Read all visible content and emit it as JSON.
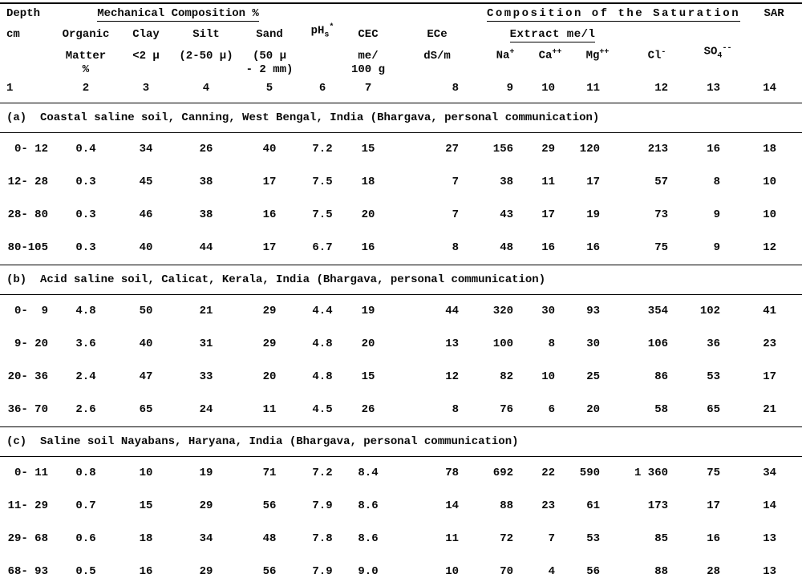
{
  "table": {
    "group_headers": {
      "mechanical": "Mechanical Composition %",
      "saturation_line1": "Composition of the Saturation",
      "saturation_line2": "Extract me/l"
    },
    "columns": [
      {
        "num": "1",
        "lines": [
          "Depth",
          "cm"
        ]
      },
      {
        "num": "2",
        "lines": [
          "Organic",
          "Matter",
          "%"
        ]
      },
      {
        "num": "3",
        "lines": [
          "Clay",
          "<2 μ"
        ]
      },
      {
        "num": "4",
        "lines": [
          "Silt",
          "(2-50 μ)"
        ]
      },
      {
        "num": "5",
        "lines": [
          "Sand",
          "(50 μ",
          "- 2 mm)"
        ]
      },
      {
        "num": "6",
        "lines": [
          "pH~s~^*^"
        ]
      },
      {
        "num": "7",
        "lines": [
          "CEC",
          "me/",
          "100 g"
        ]
      },
      {
        "num": "8",
        "lines": [
          "ECe",
          "dS/m"
        ]
      },
      {
        "num": "9",
        "lines": [
          "Na^+^"
        ]
      },
      {
        "num": "10",
        "lines": [
          "Ca^++^"
        ]
      },
      {
        "num": "11",
        "lines": [
          "Mg^++^"
        ]
      },
      {
        "num": "12",
        "lines": [
          "Cl^-^"
        ]
      },
      {
        "num": "13",
        "lines": [
          "SO~4~^--^"
        ]
      },
      {
        "num": "14",
        "lines": [
          "SAR"
        ]
      }
    ],
    "sections": [
      {
        "label": "(a)",
        "title": "Coastal saline soil, Canning, West Bengal, India (Bhargava, personal communication)",
        "rows": [
          [
            "0- 12",
            "0.4",
            "34",
            "26",
            "40",
            "7.2",
            "15",
            "27",
            "156",
            "29",
            "120",
            "213",
            "16",
            "18"
          ],
          [
            "12- 28",
            "0.3",
            "45",
            "38",
            "17",
            "7.5",
            "18",
            "7",
            "38",
            "11",
            "17",
            "57",
            "8",
            "10"
          ],
          [
            "28- 80",
            "0.3",
            "46",
            "38",
            "16",
            "7.5",
            "20",
            "7",
            "43",
            "17",
            "19",
            "73",
            "9",
            "10"
          ],
          [
            "80-105",
            "0.3",
            "40",
            "44",
            "17",
            "6.7",
            "16",
            "8",
            "48",
            "16",
            "16",
            "75",
            "9",
            "12"
          ]
        ]
      },
      {
        "label": "(b)",
        "title": "Acid saline soil, Calicat, Kerala, India (Bhargava, personal communication)",
        "rows": [
          [
            "0-  9",
            "4.8",
            "50",
            "21",
            "29",
            "4.4",
            "19",
            "44",
            "320",
            "30",
            "93",
            "354",
            "102",
            "41"
          ],
          [
            "9- 20",
            "3.6",
            "40",
            "31",
            "29",
            "4.8",
            "20",
            "13",
            "100",
            "8",
            "30",
            "106",
            "36",
            "23"
          ],
          [
            "20- 36",
            "2.4",
            "47",
            "33",
            "20",
            "4.8",
            "15",
            "12",
            "82",
            "10",
            "25",
            "86",
            "53",
            "17"
          ],
          [
            "36- 70",
            "2.6",
            "65",
            "24",
            "11",
            "4.5",
            "26",
            "8",
            "76",
            "6",
            "20",
            "58",
            "65",
            "21"
          ]
        ]
      },
      {
        "label": "(c)",
        "title": "Saline soil Nayabans, Haryana, India (Bhargava, personal communication)",
        "rows": [
          [
            "0- 11",
            "0.8",
            "10",
            "19",
            "71",
            "7.2",
            "8.4",
            "78",
            "692",
            "22",
            "590",
            "1 360",
            "75",
            "34"
          ],
          [
            "11- 29",
            "0.7",
            "15",
            "29",
            "56",
            "7.9",
            "8.6",
            "14",
            "88",
            "23",
            "61",
            "173",
            "17",
            "14"
          ],
          [
            "29- 68",
            "0.6",
            "18",
            "34",
            "48",
            "7.8",
            "8.6",
            "11",
            "72",
            "7",
            "53",
            "85",
            "16",
            "13"
          ],
          [
            "68- 93",
            "0.5",
            "16",
            "29",
            "56",
            "7.9",
            "9.0",
            "10",
            "70",
            "4",
            "56",
            "88",
            "28",
            "13"
          ]
        ]
      }
    ]
  }
}
